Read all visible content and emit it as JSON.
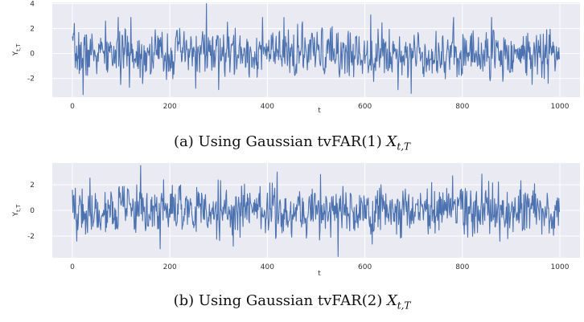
{
  "chart_data": [
    {
      "type": "line",
      "panel": "a",
      "xlabel": "t",
      "ylabel_main": "Y",
      "ylabel_sub": "t,T",
      "xlim": [
        0,
        1000
      ],
      "ylim": [
        -3.5,
        4.1
      ],
      "xticks": [
        0,
        200,
        400,
        600,
        800,
        1000
      ],
      "yticks": [
        -2,
        0,
        2,
        4
      ],
      "grid": true,
      "background": "#eaeaf2",
      "line_color": "#4c72b0",
      "seed": 7,
      "features": [
        {
          "t": 22,
          "y": -3.3
        },
        {
          "t": 120,
          "y": 2.9
        },
        {
          "t": 275,
          "y": 4.0
        },
        {
          "t": 300,
          "y": -2.9
        },
        {
          "t": 612,
          "y": 3.1
        },
        {
          "t": 695,
          "y": -3.2
        },
        {
          "t": 860,
          "y": 2.9
        },
        {
          "t": 990,
          "y": -1.4
        }
      ],
      "caption_prefix": "(a) Using Gaussian tvFAR(1) ",
      "caption_math_main": "X",
      "caption_math_sub": "t,T"
    },
    {
      "type": "line",
      "panel": "b",
      "xlabel": "t",
      "ylabel_main": "Y",
      "ylabel_sub": "t,T",
      "xlim": [
        0,
        1000
      ],
      "ylim": [
        -3.7,
        3.7
      ],
      "xticks": [
        0,
        200,
        400,
        600,
        800,
        1000
      ],
      "yticks": [
        -2,
        0,
        2
      ],
      "grid": true,
      "background": "#eaeaf2",
      "line_color": "#4c72b0",
      "seed": 19,
      "features": [
        {
          "t": 140,
          "y": 3.5
        },
        {
          "t": 180,
          "y": -3.0
        },
        {
          "t": 330,
          "y": -2.8
        },
        {
          "t": 420,
          "y": 3.0
        },
        {
          "t": 545,
          "y": -3.6
        },
        {
          "t": 780,
          "y": 2.7
        },
        {
          "t": 990,
          "y": 0.4
        }
      ],
      "caption_prefix": "(b) Using Gaussian tvFAR(2) ",
      "caption_math_main": "X",
      "caption_math_sub": "t,T"
    }
  ]
}
